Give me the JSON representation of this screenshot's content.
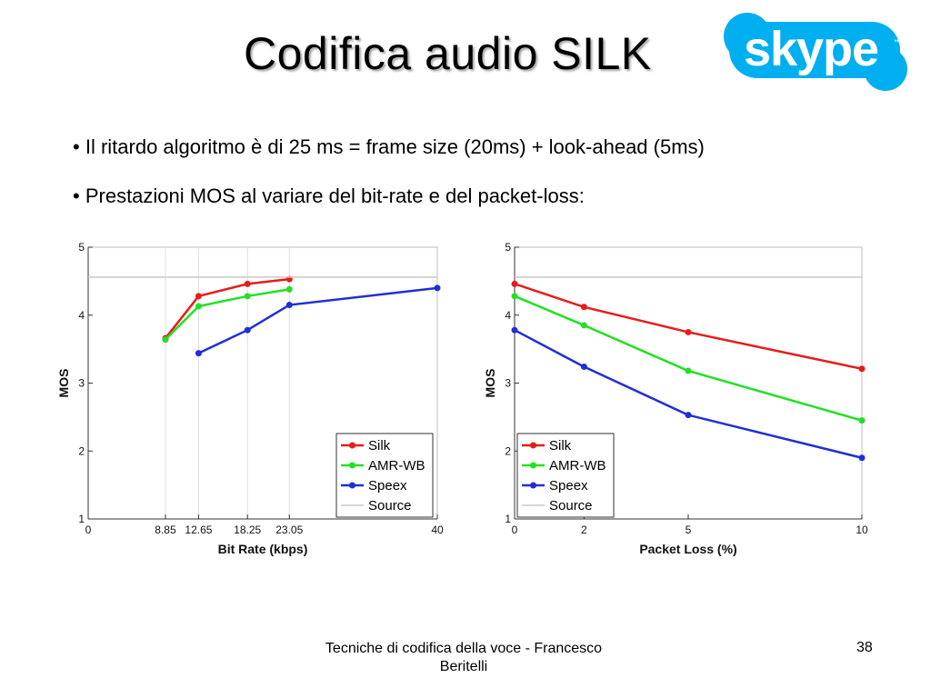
{
  "slide": {
    "title": "Codifica audio SILK",
    "logo_text": "skype",
    "bullets": [
      "Il ritardo algoritmo è di 25 ms = frame size (20ms) + look-ahead (5ms)",
      "Prestazioni MOS al variare del bit-rate e del packet-loss:"
    ],
    "footer": "Tecniche di codifica della voce - Francesco Beritelli",
    "page_number": "38"
  },
  "colors": {
    "silk": "#e81b1b",
    "amr_wb": "#22e022",
    "speex": "#1f2fd6",
    "source": "#c8c8c8",
    "skype_blue": "#00aff0"
  },
  "chart_data": [
    {
      "type": "line",
      "xlabel": "Bit Rate (kbps)",
      "ylabel": "MOS",
      "xlim": [
        0,
        40
      ],
      "ylim": [
        1,
        5
      ],
      "xticks": [
        0,
        8.85,
        12.65,
        18.25,
        23.05,
        40
      ],
      "xtick_labels": [
        "0",
        "8.85",
        "12.65",
        "18.25",
        "23.05",
        "40"
      ],
      "yticks": [
        1,
        2,
        3,
        4,
        5
      ],
      "grid": true,
      "legend_position": "bottom-right",
      "series": [
        {
          "name": "Silk",
          "x": [
            8.85,
            12.65,
            18.25,
            23.05
          ],
          "values": [
            3.66,
            4.28,
            4.46,
            4.53
          ]
        },
        {
          "name": "AMR-WB",
          "x": [
            8.85,
            12.65,
            18.25,
            23.05
          ],
          "values": [
            3.64,
            4.13,
            4.28,
            4.38
          ]
        },
        {
          "name": "Speex",
          "x": [
            12.65,
            18.25,
            23.05,
            40
          ],
          "values": [
            3.44,
            3.78,
            4.15,
            4.4
          ]
        },
        {
          "name": "Source",
          "x": [
            0,
            40
          ],
          "values": [
            4.56,
            4.56
          ]
        }
      ]
    },
    {
      "type": "line",
      "xlabel": "Packet Loss (%)",
      "ylabel": "MOS",
      "xlim": [
        0,
        10
      ],
      "ylim": [
        1,
        5
      ],
      "xticks": [
        0,
        2,
        5,
        10
      ],
      "xtick_labels": [
        "0",
        "2",
        "5",
        "10"
      ],
      "yticks": [
        1,
        2,
        3,
        4,
        5
      ],
      "grid": false,
      "legend_position": "bottom-left",
      "series": [
        {
          "name": "Silk",
          "x": [
            0,
            2,
            5,
            10
          ],
          "values": [
            4.46,
            4.12,
            3.75,
            3.21
          ]
        },
        {
          "name": "AMR-WB",
          "x": [
            0,
            2,
            5,
            10
          ],
          "values": [
            4.28,
            3.85,
            3.18,
            2.45
          ]
        },
        {
          "name": "Speex",
          "x": [
            0,
            2,
            5,
            10
          ],
          "values": [
            3.78,
            3.24,
            2.53,
            1.9
          ]
        },
        {
          "name": "Source",
          "x": [
            0,
            10
          ],
          "values": [
            4.56,
            4.56
          ]
        }
      ]
    }
  ]
}
